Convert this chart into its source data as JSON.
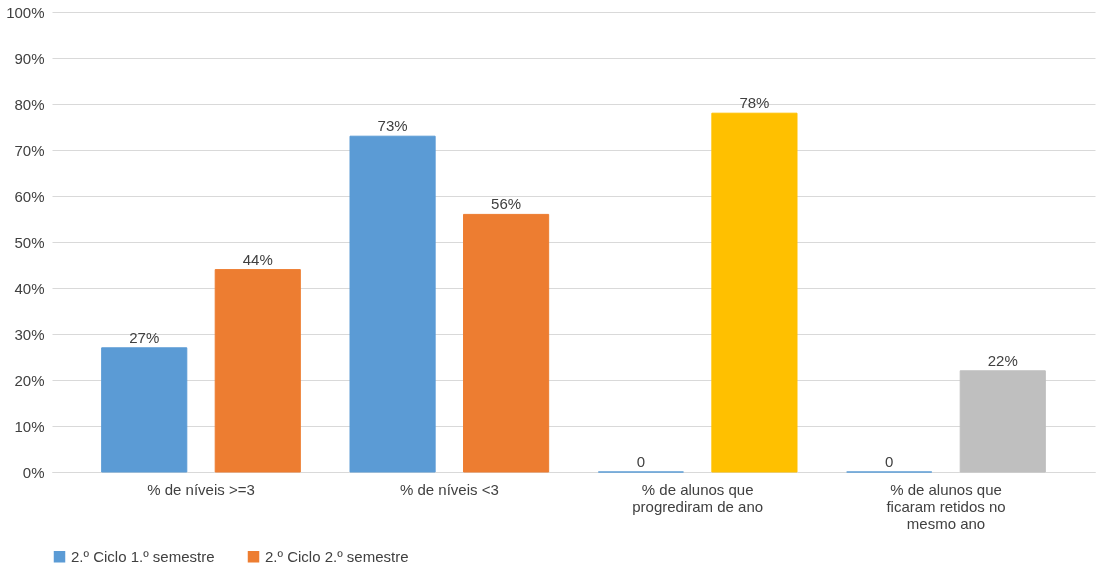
{
  "chart_data": {
    "type": "bar",
    "categories": [
      "% de níveis >=3",
      "% de níveis <3",
      "% de alunos que progrediram de ano",
      "% de alunos que ficaram retidos no mesmo ano"
    ],
    "series": [
      {
        "name": "2.º Ciclo 1.º semestre",
        "color": "#5b9bd5",
        "values": [
          27,
          73,
          0,
          0
        ],
        "value_labels": [
          "27%",
          "73%",
          "0",
          "0"
        ]
      },
      {
        "name": "2.º Ciclo 2.º semestre",
        "color": "#ed7d31",
        "colors": [
          "#ed7d31",
          "#ed7d31",
          "#ffc000",
          "#bfbfbf"
        ],
        "values": [
          44,
          56,
          78,
          22
        ],
        "value_labels": [
          "44%",
          "56%",
          "78%",
          "22%"
        ]
      }
    ],
    "ylim": [
      0,
      100
    ],
    "yticks": [
      {
        "value": 0,
        "label": "0%"
      },
      {
        "value": 10,
        "label": "10%"
      },
      {
        "value": 20,
        "label": "20%"
      },
      {
        "value": 30,
        "label": "30%"
      },
      {
        "value": 40,
        "label": "40%"
      },
      {
        "value": 50,
        "label": "50%"
      },
      {
        "value": 60,
        "label": "60%"
      },
      {
        "value": 70,
        "label": "70%"
      },
      {
        "value": 80,
        "label": "80%"
      },
      {
        "value": 90,
        "label": "90%"
      },
      {
        "value": 100,
        "label": "100%"
      }
    ],
    "grid": "y",
    "legend": "bottom"
  }
}
